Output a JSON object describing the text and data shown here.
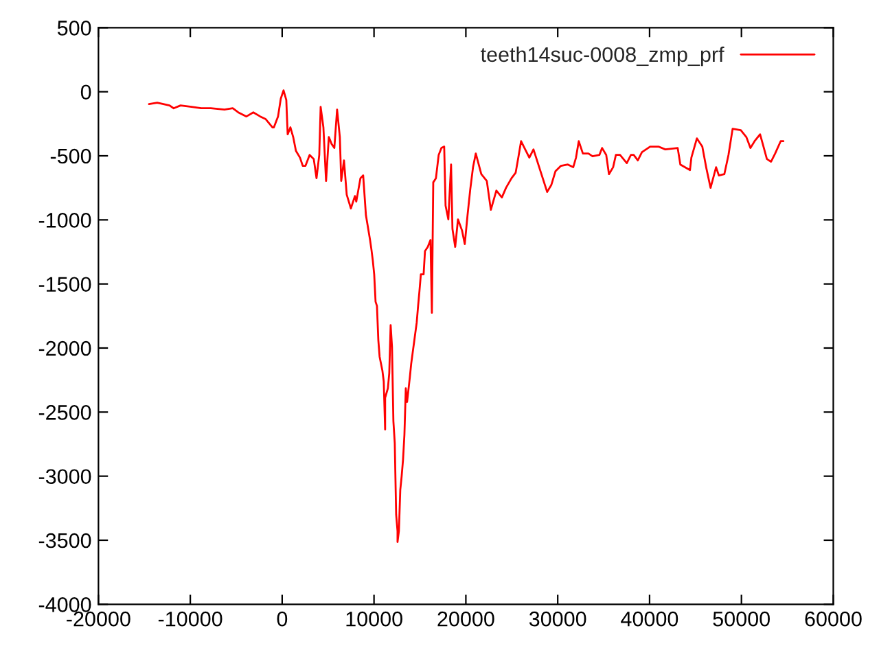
{
  "chart_data": {
    "type": "line",
    "series": [
      {
        "name": "teeth14suc-0008_zmp_prf",
        "color": "#ff0000",
        "x": [
          -14500,
          -13600,
          -12260,
          -11810,
          -11060,
          -9870,
          -8820,
          -7770,
          -6280,
          -5380,
          -4780,
          -3890,
          -3140,
          -2390,
          -1790,
          -1050,
          -900,
          -450,
          -150,
          150,
          450,
          600,
          900,
          1200,
          1500,
          1940,
          2240,
          2540,
          2990,
          3440,
          3740,
          4040,
          4190,
          4490,
          4780,
          5080,
          5380,
          5680,
          5980,
          6280,
          6430,
          6730,
          7030,
          7480,
          7920,
          8070,
          8520,
          8820,
          9120,
          9270,
          9570,
          9720,
          9870,
          10020,
          10170,
          10320,
          10470,
          10610,
          10910,
          11060,
          11210,
          11210,
          11510,
          11660,
          11810,
          11960,
          12110,
          12260,
          12410,
          12560,
          12560,
          12710,
          12860,
          13010,
          13160,
          13310,
          13460,
          13600,
          13900,
          14050,
          14350,
          14650,
          14800,
          14950,
          15100,
          15400,
          15550,
          15850,
          16150,
          16300,
          16450,
          16740,
          17040,
          17340,
          17640,
          17790,
          18090,
          18390,
          18540,
          18840,
          19140,
          19580,
          19880,
          20180,
          20480,
          20780,
          21080,
          21680,
          22280,
          22720,
          23320,
          23920,
          24370,
          24970,
          25420,
          25710,
          26010,
          26910,
          27360,
          28850,
          29300,
          29750,
          30350,
          31100,
          31690,
          31990,
          32290,
          32740,
          33340,
          33790,
          34540,
          34830,
          35280,
          35580,
          36030,
          36330,
          36780,
          37520,
          37970,
          38270,
          38720,
          39170,
          40060,
          40960,
          41710,
          43060,
          43350,
          44400,
          44550,
          45150,
          45740,
          46190,
          46640,
          47240,
          47540,
          48140,
          48590,
          49040,
          49930,
          50530,
          50980,
          51430,
          52030,
          52320,
          52770,
          53220,
          53670,
          54270,
          54570
        ],
        "values": [
          -96,
          -86,
          -107,
          -129,
          -107,
          -118,
          -129,
          -129,
          -139,
          -129,
          -161,
          -193,
          -161,
          -193,
          -214,
          -278,
          -278,
          -193,
          -54,
          11,
          -64,
          -332,
          -278,
          -353,
          -461,
          -514,
          -578,
          -578,
          -493,
          -525,
          -675,
          -493,
          -118,
          -278,
          -696,
          -353,
          -407,
          -439,
          -139,
          -353,
          -696,
          -536,
          -803,
          -911,
          -814,
          -857,
          -675,
          -653,
          -964,
          -1028,
          -1157,
          -1232,
          -1318,
          -1425,
          -1639,
          -1671,
          -1939,
          -2068,
          -2175,
          -2261,
          -2636,
          -2389,
          -2314,
          -2196,
          -1821,
          -1993,
          -2571,
          -2743,
          -3300,
          -3428,
          -3514,
          -3428,
          -3107,
          -3000,
          -2871,
          -2678,
          -2314,
          -2421,
          -2228,
          -2121,
          -1961,
          -1800,
          -1671,
          -1553,
          -1425,
          -1425,
          -1243,
          -1211,
          -1157,
          -1725,
          -707,
          -675,
          -493,
          -439,
          -428,
          -889,
          -996,
          -568,
          -1071,
          -1211,
          -996,
          -1082,
          -1189,
          -964,
          -761,
          -589,
          -482,
          -643,
          -696,
          -921,
          -771,
          -825,
          -750,
          -675,
          -632,
          -514,
          -386,
          -514,
          -450,
          -782,
          -728,
          -621,
          -578,
          -568,
          -589,
          -514,
          -386,
          -482,
          -482,
          -503,
          -493,
          -439,
          -493,
          -643,
          -589,
          -493,
          -493,
          -557,
          -493,
          -493,
          -536,
          -471,
          -428,
          -428,
          -450,
          -439,
          -568,
          -611,
          -514,
          -364,
          -428,
          -600,
          -750,
          -589,
          -653,
          -643,
          -493,
          -289,
          -300,
          -353,
          -439,
          -386,
          -332,
          -407,
          -525,
          -546,
          -482,
          -386,
          -386
        ]
      }
    ],
    "xlim": [
      -20000,
      60000
    ],
    "xticks": [
      -20000,
      -10000,
      0,
      10000,
      20000,
      30000,
      40000,
      50000,
      60000
    ],
    "ylim": [
      -4000,
      500
    ],
    "yticks": [
      -4000,
      -3500,
      -3000,
      -2500,
      -2000,
      -1500,
      -1000,
      -500,
      0,
      500
    ],
    "grid": false,
    "legend": "top right",
    "marker": "none",
    "line_style": "solid"
  }
}
